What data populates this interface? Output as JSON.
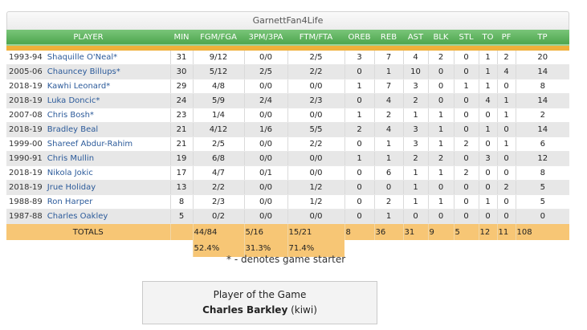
{
  "team_title": "GarnettFan4Life",
  "columns": [
    "PLAYER",
    "MIN",
    "FGM/FGA",
    "3PM/3PA",
    "FTM/FTA",
    "OREB",
    "REB",
    "AST",
    "BLK",
    "STL",
    "TO",
    "PF",
    "TP"
  ],
  "rows": [
    {
      "season": "1993-94",
      "name": "Shaquille O'Neal*",
      "min": "31",
      "fg": "9/12",
      "tp3": "0/0",
      "ft": "2/5",
      "oreb": "3",
      "reb": "7",
      "ast": "4",
      "blk": "2",
      "stl": "0",
      "to": "1",
      "pf": "2",
      "pts": "20"
    },
    {
      "season": "2005-06",
      "name": "Chauncey Billups*",
      "min": "30",
      "fg": "5/12",
      "tp3": "2/5",
      "ft": "2/2",
      "oreb": "0",
      "reb": "1",
      "ast": "10",
      "blk": "0",
      "stl": "0",
      "to": "1",
      "pf": "4",
      "pts": "14"
    },
    {
      "season": "2018-19",
      "name": "Kawhi Leonard*",
      "min": "29",
      "fg": "4/8",
      "tp3": "0/0",
      "ft": "0/0",
      "oreb": "1",
      "reb": "7",
      "ast": "3",
      "blk": "0",
      "stl": "1",
      "to": "1",
      "pf": "0",
      "pts": "8"
    },
    {
      "season": "2018-19",
      "name": "Luka Doncic*",
      "min": "24",
      "fg": "5/9",
      "tp3": "2/4",
      "ft": "2/3",
      "oreb": "0",
      "reb": "4",
      "ast": "2",
      "blk": "0",
      "stl": "0",
      "to": "4",
      "pf": "1",
      "pts": "14"
    },
    {
      "season": "2007-08",
      "name": "Chris Bosh*",
      "min": "23",
      "fg": "1/4",
      "tp3": "0/0",
      "ft": "0/0",
      "oreb": "1",
      "reb": "2",
      "ast": "1",
      "blk": "1",
      "stl": "0",
      "to": "0",
      "pf": "1",
      "pts": "2"
    },
    {
      "season": "2018-19",
      "name": "Bradley Beal",
      "min": "21",
      "fg": "4/12",
      "tp3": "1/6",
      "ft": "5/5",
      "oreb": "2",
      "reb": "4",
      "ast": "3",
      "blk": "1",
      "stl": "0",
      "to": "1",
      "pf": "0",
      "pts": "14"
    },
    {
      "season": "1999-00",
      "name": "Shareef Abdur-Rahim",
      "min": "21",
      "fg": "2/5",
      "tp3": "0/0",
      "ft": "2/2",
      "oreb": "0",
      "reb": "1",
      "ast": "3",
      "blk": "1",
      "stl": "2",
      "to": "0",
      "pf": "1",
      "pts": "6"
    },
    {
      "season": "1990-91",
      "name": "Chris Mullin",
      "min": "19",
      "fg": "6/8",
      "tp3": "0/0",
      "ft": "0/0",
      "oreb": "1",
      "reb": "1",
      "ast": "2",
      "blk": "2",
      "stl": "0",
      "to": "3",
      "pf": "0",
      "pts": "12"
    },
    {
      "season": "2018-19",
      "name": "Nikola Jokic",
      "min": "17",
      "fg": "4/7",
      "tp3": "0/1",
      "ft": "0/0",
      "oreb": "0",
      "reb": "6",
      "ast": "1",
      "blk": "1",
      "stl": "2",
      "to": "0",
      "pf": "0",
      "pts": "8"
    },
    {
      "season": "2018-19",
      "name": "Jrue Holiday",
      "min": "13",
      "fg": "2/2",
      "tp3": "0/0",
      "ft": "1/2",
      "oreb": "0",
      "reb": "0",
      "ast": "1",
      "blk": "0",
      "stl": "0",
      "to": "0",
      "pf": "2",
      "pts": "5"
    },
    {
      "season": "1988-89",
      "name": "Ron Harper",
      "min": "8",
      "fg": "2/3",
      "tp3": "0/0",
      "ft": "1/2",
      "oreb": "0",
      "reb": "2",
      "ast": "1",
      "blk": "1",
      "stl": "0",
      "to": "1",
      "pf": "0",
      "pts": "5"
    },
    {
      "season": "1987-88",
      "name": "Charles Oakley",
      "min": "5",
      "fg": "0/2",
      "tp3": "0/0",
      "ft": "0/0",
      "oreb": "0",
      "reb": "1",
      "ast": "0",
      "blk": "0",
      "stl": "0",
      "to": "0",
      "pf": "0",
      "pts": "0"
    }
  ],
  "totals": {
    "label": "TOTALS",
    "fg": "44/84",
    "tp3": "5/16",
    "ft": "15/21",
    "oreb": "8",
    "reb": "36",
    "ast": "31",
    "blk": "9",
    "stl": "5",
    "to": "12",
    "pf": "11",
    "pts": "108"
  },
  "percentages": {
    "fg": "52.4%",
    "tp3": "31.3%",
    "ft": "71.4%"
  },
  "starter_note": "* - denotes game starter",
  "player_of_game": {
    "label": "Player of the Game",
    "name": "Charles Barkley",
    "user": "(kiwi)"
  },
  "colors": {
    "header_green": "#5cb25c",
    "accent_orange": "#f0b03a",
    "totals_bg": "#f7c675",
    "link_blue": "#2b5a9a"
  }
}
